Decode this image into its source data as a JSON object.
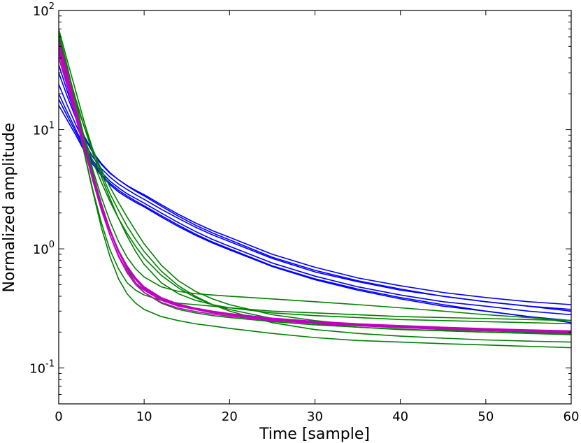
{
  "chart_data": {
    "type": "line",
    "title": "",
    "xlabel": "Time [sample]",
    "ylabel": "Normalized amplitude",
    "xlim": [
      0,
      60
    ],
    "ylim": [
      0.05,
      100
    ],
    "yscale": "log",
    "grid": false,
    "legend": "none",
    "x_ticks": [
      0,
      10,
      20,
      30,
      40,
      50,
      60
    ],
    "y_ticks": [
      {
        "value": 0.1,
        "base": "10",
        "exp": "-1"
      },
      {
        "value": 1,
        "base": "10",
        "exp": "0"
      },
      {
        "value": 10,
        "base": "10",
        "exp": "1"
      },
      {
        "value": 100,
        "base": "10",
        "exp": "2"
      }
    ],
    "x": [
      0,
      1,
      2,
      3,
      4,
      5,
      6,
      7,
      8,
      9,
      10,
      12,
      14,
      16,
      18,
      20,
      25,
      30,
      35,
      40,
      45,
      50,
      55,
      60
    ],
    "series": [
      {
        "color": "#0000ff",
        "values": [
          30,
          19,
          12.5,
          8.6,
          6.4,
          5.1,
          4.3,
          3.8,
          3.4,
          3.1,
          2.85,
          2.35,
          1.95,
          1.65,
          1.42,
          1.25,
          0.9,
          0.7,
          0.57,
          0.49,
          0.43,
          0.39,
          0.36,
          0.34
        ]
      },
      {
        "color": "#0000ff",
        "values": [
          24,
          16,
          11,
          7.8,
          5.9,
          4.7,
          4.0,
          3.5,
          3.15,
          2.85,
          2.6,
          2.15,
          1.8,
          1.52,
          1.31,
          1.15,
          0.83,
          0.64,
          0.53,
          0.45,
          0.4,
          0.36,
          0.33,
          0.31
        ]
      },
      {
        "color": "#0000ff",
        "values": [
          20,
          14,
          10,
          7.2,
          5.5,
          4.4,
          3.7,
          3.25,
          2.9,
          2.65,
          2.42,
          2.0,
          1.66,
          1.4,
          1.2,
          1.05,
          0.76,
          0.59,
          0.48,
          0.41,
          0.36,
          0.33,
          0.3,
          0.28
        ]
      },
      {
        "color": "#0000ff",
        "values": [
          16,
          12,
          9.0,
          6.6,
          5.1,
          4.1,
          3.45,
          3.0,
          2.7,
          2.45,
          2.25,
          1.85,
          1.54,
          1.3,
          1.12,
          0.98,
          0.71,
          0.55,
          0.45,
          0.38,
          0.33,
          0.3,
          0.27,
          0.25
        ]
      },
      {
        "color": "#0000ff",
        "values": [
          35,
          21,
          13,
          8.8,
          6.5,
          5.2,
          4.35,
          3.8,
          3.38,
          3.05,
          2.78,
          2.28,
          1.88,
          1.58,
          1.36,
          1.19,
          0.85,
          0.66,
          0.54,
          0.46,
          0.4,
          0.36,
          0.33,
          0.3
        ]
      },
      {
        "color": "#0000ff",
        "values": [
          18,
          13,
          9.5,
          6.9,
          5.3,
          4.2,
          3.55,
          3.1,
          2.78,
          2.52,
          2.3,
          1.9,
          1.58,
          1.33,
          1.14,
          1.0,
          0.72,
          0.56,
          0.46,
          0.39,
          0.34,
          0.3,
          0.27,
          0.24
        ]
      },
      {
        "color": "#008000",
        "values": [
          60,
          30,
          14,
          6.4,
          3.1,
          1.65,
          0.98,
          0.68,
          0.52,
          0.45,
          0.41,
          0.37,
          0.35,
          0.34,
          0.33,
          0.32,
          0.3,
          0.29,
          0.28,
          0.27,
          0.265,
          0.26,
          0.255,
          0.25
        ]
      },
      {
        "color": "#008000",
        "values": [
          70,
          38,
          21,
          11.5,
          6.8,
          4.3,
          2.9,
          2.1,
          1.55,
          1.2,
          0.95,
          0.65,
          0.49,
          0.4,
          0.34,
          0.3,
          0.24,
          0.21,
          0.195,
          0.185,
          0.178,
          0.172,
          0.168,
          0.165
        ]
      },
      {
        "color": "#008000",
        "values": [
          50,
          26,
          13,
          6.3,
          3.0,
          1.5,
          0.86,
          0.56,
          0.42,
          0.35,
          0.31,
          0.27,
          0.25,
          0.235,
          0.225,
          0.215,
          0.195,
          0.18,
          0.17,
          0.165,
          0.16,
          0.156,
          0.152,
          0.148
        ]
      },
      {
        "color": "#008000",
        "values": [
          45,
          28,
          17,
          10.5,
          6.8,
          4.6,
          3.3,
          2.45,
          1.85,
          1.42,
          1.1,
          0.73,
          0.54,
          0.44,
          0.38,
          0.34,
          0.28,
          0.25,
          0.23,
          0.22,
          0.21,
          0.205,
          0.2,
          0.195
        ]
      },
      {
        "color": "#008000",
        "values": [
          55,
          32,
          18,
          10.5,
          6.3,
          4.0,
          2.65,
          1.8,
          1.28,
          0.95,
          0.74,
          0.52,
          0.42,
          0.37,
          0.34,
          0.32,
          0.29,
          0.275,
          0.265,
          0.255,
          0.25,
          0.245,
          0.24,
          0.235
        ]
      },
      {
        "color": "#008000",
        "values": [
          65,
          34,
          17,
          8.5,
          4.6,
          2.7,
          1.7,
          1.15,
          0.85,
          0.68,
          0.58,
          0.48,
          0.44,
          0.42,
          0.41,
          0.4,
          0.38,
          0.36,
          0.34,
          0.32,
          0.3,
          0.28,
          0.265,
          0.25
        ]
      },
      {
        "color": "#008000",
        "values": [
          40,
          24,
          14,
          8.5,
          5.4,
          3.6,
          2.5,
          1.8,
          1.35,
          1.05,
          0.84,
          0.6,
          0.47,
          0.39,
          0.34,
          0.31,
          0.26,
          0.235,
          0.22,
          0.21,
          0.205,
          0.2,
          0.196,
          0.192
        ]
      },
      {
        "color": "#008000",
        "values": [
          62,
          33,
          16.5,
          8.2,
          4.3,
          2.4,
          1.45,
          0.95,
          0.68,
          0.52,
          0.43,
          0.35,
          0.31,
          0.29,
          0.275,
          0.265,
          0.245,
          0.23,
          0.22,
          0.212,
          0.206,
          0.2,
          0.195,
          0.19
        ]
      },
      {
        "color": "#c000c0",
        "values": [
          52,
          28,
          14,
          7.0,
          3.7,
          2.1,
          1.3,
          0.88,
          0.65,
          0.52,
          0.45,
          0.37,
          0.33,
          0.31,
          0.29,
          0.28,
          0.255,
          0.24,
          0.23,
          0.222,
          0.215,
          0.21,
          0.205,
          0.2
        ]
      },
      {
        "color": "#c000c0",
        "values": [
          48,
          27,
          14.5,
          7.6,
          4.1,
          2.35,
          1.45,
          0.97,
          0.71,
          0.56,
          0.47,
          0.385,
          0.34,
          0.315,
          0.295,
          0.282,
          0.258,
          0.242,
          0.232,
          0.224,
          0.218,
          0.212,
          0.207,
          0.203
        ]
      },
      {
        "color": "#c000c0",
        "values": [
          44,
          25,
          13.5,
          7.2,
          3.9,
          2.25,
          1.4,
          0.94,
          0.69,
          0.55,
          0.46,
          0.38,
          0.335,
          0.31,
          0.292,
          0.278,
          0.255,
          0.24,
          0.23,
          0.222,
          0.215,
          0.21,
          0.205,
          0.2
        ]
      },
      {
        "color": "#c000c0",
        "values": [
          56,
          30,
          15,
          7.5,
          3.9,
          2.15,
          1.3,
          0.86,
          0.63,
          0.5,
          0.43,
          0.355,
          0.318,
          0.298,
          0.283,
          0.272,
          0.25,
          0.236,
          0.226,
          0.218,
          0.212,
          0.207,
          0.202,
          0.198
        ]
      },
      {
        "color": "#c000c0",
        "values": [
          40,
          23,
          12.5,
          6.8,
          3.8,
          2.25,
          1.42,
          0.97,
          0.72,
          0.57,
          0.48,
          0.39,
          0.345,
          0.318,
          0.3,
          0.286,
          0.262,
          0.246,
          0.235,
          0.227,
          0.22,
          0.214,
          0.209,
          0.205
        ]
      }
    ]
  }
}
